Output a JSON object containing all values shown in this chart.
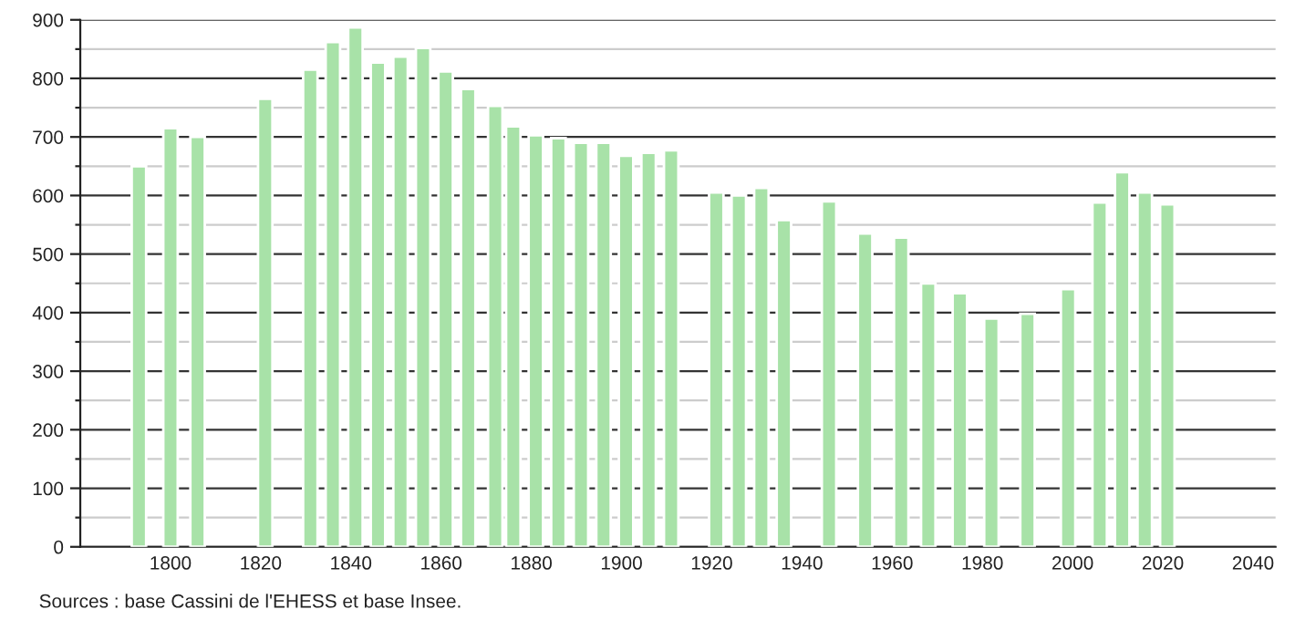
{
  "chart_data": {
    "type": "bar",
    "color": "#a8e2a8",
    "x": [
      1793,
      1800,
      1806,
      1821,
      1831,
      1836,
      1841,
      1846,
      1851,
      1856,
      1861,
      1866,
      1872,
      1876,
      1881,
      1886,
      1891,
      1896,
      1901,
      1906,
      1911,
      1921,
      1926,
      1931,
      1936,
      1946,
      1954,
      1962,
      1968,
      1975,
      1982,
      1990,
      1999,
      2006,
      2011,
      2016,
      2021
    ],
    "values": [
      650,
      715,
      700,
      765,
      815,
      862,
      887,
      827,
      837,
      852,
      812,
      782,
      753,
      718,
      703,
      698,
      690,
      690,
      668,
      673,
      677,
      605,
      600,
      613,
      558,
      590,
      535,
      528,
      450,
      433,
      390,
      398,
      440,
      588,
      640,
      605,
      585
    ],
    "xlim": [
      1780,
      2045
    ],
    "xticks": [
      1800,
      1820,
      1840,
      1860,
      1880,
      1900,
      1920,
      1940,
      1960,
      1980,
      2000,
      2020,
      2040
    ],
    "ylim": [
      0,
      900
    ],
    "yticks": [
      0,
      {
        "value": 50,
        "label": null
      },
      100,
      {
        "value": 150,
        "label": null
      },
      200,
      {
        "value": 250,
        "label": null
      },
      300,
      {
        "value": 350,
        "label": null
      },
      400,
      {
        "value": 450,
        "label": null
      },
      500,
      {
        "value": 550,
        "label": null
      },
      600,
      {
        "value": 650,
        "label": null
      },
      700,
      {
        "value": 750,
        "label": null
      },
      800,
      {
        "value": 850,
        "label": null
      },
      900
    ],
    "grid": "y",
    "annotations": [
      "Sources : base Cassini de l'EHESS et base Insee."
    ]
  }
}
